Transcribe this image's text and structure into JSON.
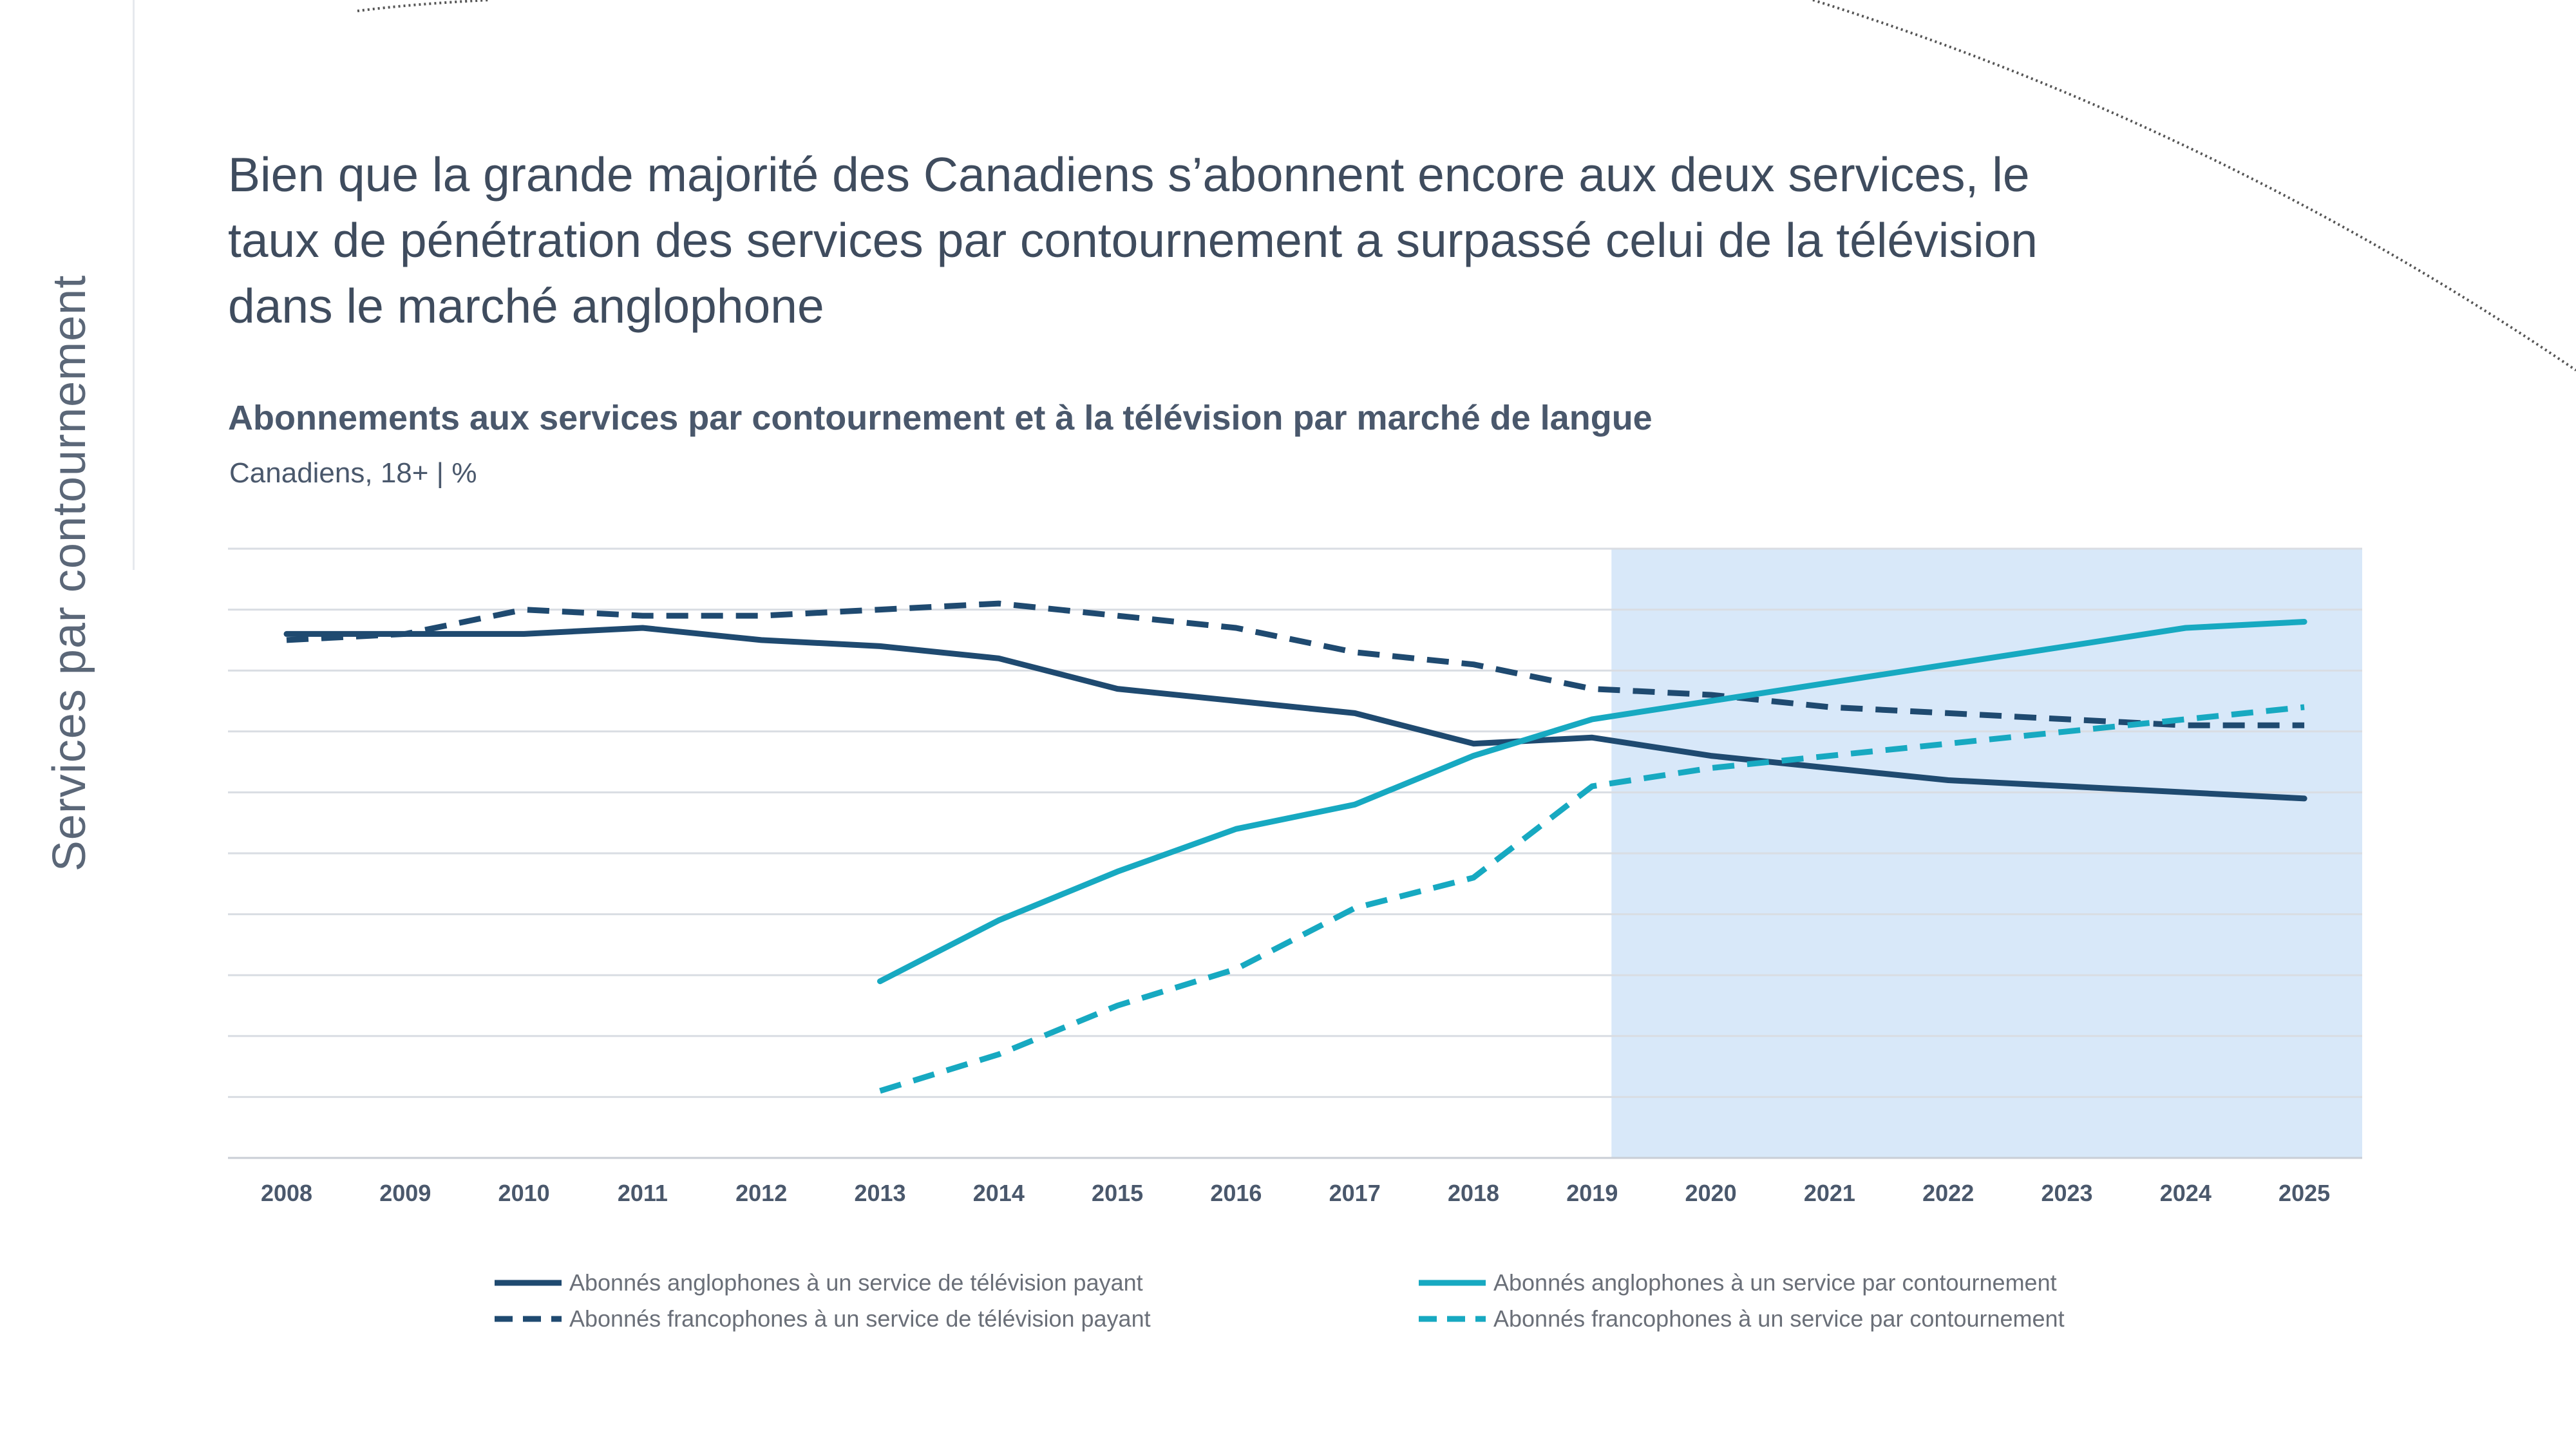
{
  "side_label": "Services par contournement",
  "headline": "Bien que la grande majorité des Canadiens s’abonnent encore aux deux services, le taux de pénétration des services par contournement a surpassé celui de la télévision dans le marché anglophone",
  "colors": {
    "dark_navy": "#1f4a70",
    "teal": "#17a9c1",
    "forecast_shade": "#d8e8f9",
    "gridline": "#d9dde3",
    "text": "#4a586c"
  },
  "chart_data": {
    "type": "line",
    "title": "Abonnements aux services par contournement et à la télévision par marché de langue",
    "subtitle": "Canadiens, 18+ | %",
    "x": [
      "2008",
      "2009",
      "2010",
      "2011",
      "2012",
      "2013",
      "2014",
      "2015",
      "2016",
      "2017",
      "2018",
      "2019",
      "2020",
      "2021",
      "2022",
      "2023",
      "2024",
      "2025"
    ],
    "ylim": [
      0,
      100
    ],
    "y_tick_labels_shown": false,
    "grid": true,
    "forecast_region": {
      "from": "2019",
      "to": "2025"
    },
    "legend_placement": "bottom",
    "series": [
      {
        "name": "Abonnés anglophones à un service de télévision payant",
        "color": "#1f4a70",
        "dash": false,
        "values": [
          86,
          86,
          86,
          87,
          85,
          84,
          82,
          77,
          75,
          73,
          68,
          69,
          66,
          64,
          62,
          61,
          60,
          59
        ]
      },
      {
        "name": "Abonnés francophones à un service de télévision payant",
        "color": "#1f4a70",
        "dash": true,
        "values": [
          85,
          86,
          90,
          89,
          89,
          90,
          91,
          89,
          87,
          83,
          81,
          77,
          76,
          74,
          73,
          72,
          71,
          71
        ]
      },
      {
        "name": "Abonnés anglophones à un service par contournement",
        "color": "#17a9c1",
        "dash": false,
        "values": [
          null,
          null,
          null,
          null,
          null,
          29,
          39,
          47,
          54,
          58,
          66,
          72,
          75,
          78,
          81,
          84,
          87,
          88
        ]
      },
      {
        "name": "Abonnés francophones à un service par contournement",
        "color": "#17a9c1",
        "dash": true,
        "values": [
          null,
          null,
          null,
          null,
          null,
          11,
          17,
          25,
          31,
          41,
          46,
          61,
          64,
          66,
          68,
          70,
          72,
          74
        ]
      }
    ]
  }
}
